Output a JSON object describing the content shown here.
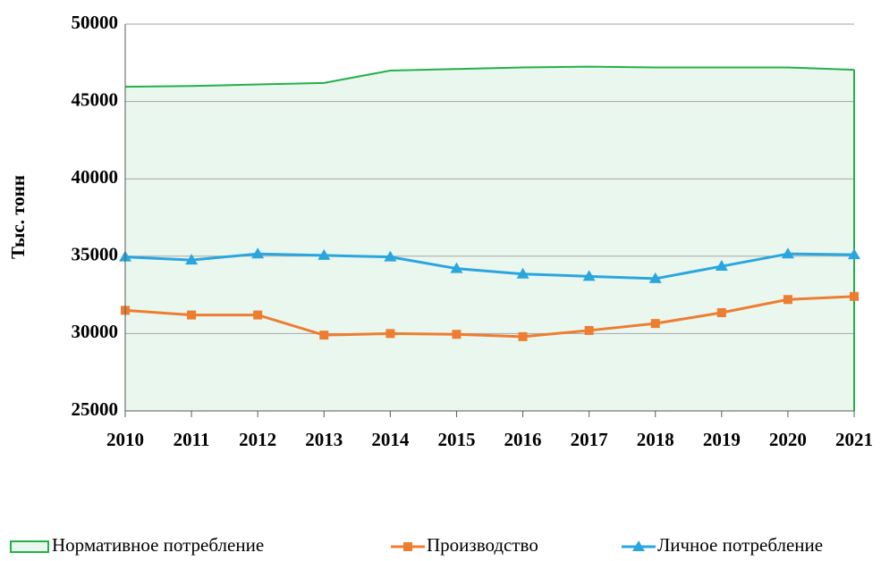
{
  "chart_data": {
    "type": "line",
    "y_label": "Тыс. тонн",
    "categories": [
      "2010",
      "2011",
      "2012",
      "2013",
      "2014",
      "2015",
      "2016",
      "2017",
      "2018",
      "2019",
      "2020",
      "2021"
    ],
    "ylim": [
      25000,
      50000
    ],
    "yticks": [
      25000,
      30000,
      35000,
      40000,
      45000,
      50000
    ],
    "grid": true,
    "legend": "bottom",
    "series": [
      {
        "name": "Нормативное потребление",
        "type": "area",
        "color": "#22b04b",
        "fill": "#eaf7ee",
        "values": [
          45950,
          46000,
          46100,
          46200,
          47000,
          47100,
          47200,
          47250,
          47200,
          47200,
          47200,
          47050
        ]
      },
      {
        "name": "Производство",
        "type": "line",
        "marker": "square",
        "color": "#ed7d31",
        "values": [
          31500,
          31200,
          31200,
          29900,
          30000,
          29950,
          29800,
          30200,
          30650,
          31350,
          32200,
          32400
        ]
      },
      {
        "name": "Личное потребление",
        "type": "line",
        "marker": "triangle",
        "color": "#2aa6df",
        "values": [
          34950,
          34750,
          35150,
          35050,
          34950,
          34200,
          33850,
          33700,
          33550,
          34350,
          35150,
          35100
        ]
      }
    ]
  }
}
